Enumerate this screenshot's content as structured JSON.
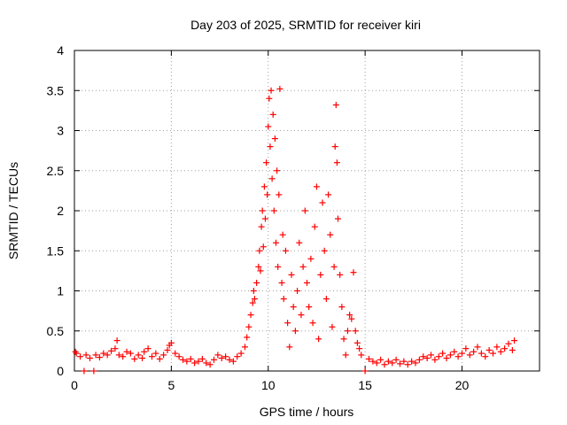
{
  "chart_data": {
    "type": "scatter",
    "title": "Day 203 of 2025, SRMTID for receiver kiri",
    "xlabel": "GPS time / hours",
    "ylabel": "SRMTID / TECUs",
    "xlim": [
      0,
      24
    ],
    "ylim": [
      0,
      4
    ],
    "x_ticks": [
      0,
      5,
      10,
      15,
      20
    ],
    "x_tick_labels": [
      "0",
      "5",
      "10",
      "15",
      "20"
    ],
    "y_ticks": [
      0,
      0.5,
      1,
      1.5,
      2,
      2.5,
      3,
      3.5,
      4
    ],
    "y_tick_labels": [
      "0",
      "0.5",
      "1",
      "1.5",
      "2",
      "2.5",
      "3",
      "3.5",
      "4"
    ],
    "grid": true,
    "marker": "+",
    "color": "#ff0000",
    "series": [
      {
        "name": "SRMTID",
        "points": [
          [
            0.05,
            0.24
          ],
          [
            0.1,
            0.22
          ],
          [
            0.3,
            0.18
          ],
          [
            0.5,
            0.0
          ],
          [
            0.6,
            0.2
          ],
          [
            0.8,
            0.16
          ],
          [
            1.0,
            0.0
          ],
          [
            1.1,
            0.2
          ],
          [
            1.3,
            0.17
          ],
          [
            1.5,
            0.22
          ],
          [
            1.7,
            0.2
          ],
          [
            1.9,
            0.25
          ],
          [
            2.1,
            0.28
          ],
          [
            2.2,
            0.38
          ],
          [
            2.3,
            0.2
          ],
          [
            2.5,
            0.18
          ],
          [
            2.7,
            0.24
          ],
          [
            2.9,
            0.22
          ],
          [
            3.1,
            0.15
          ],
          [
            3.3,
            0.2
          ],
          [
            3.5,
            0.16
          ],
          [
            3.6,
            0.24
          ],
          [
            3.8,
            0.28
          ],
          [
            4.0,
            0.18
          ],
          [
            4.2,
            0.22
          ],
          [
            4.4,
            0.15
          ],
          [
            4.6,
            0.2
          ],
          [
            4.8,
            0.26
          ],
          [
            4.9,
            0.32
          ],
          [
            5.0,
            0.35
          ],
          [
            5.2,
            0.22
          ],
          [
            5.4,
            0.18
          ],
          [
            5.6,
            0.14
          ],
          [
            5.8,
            0.12
          ],
          [
            6.0,
            0.15
          ],
          [
            6.2,
            0.1
          ],
          [
            6.4,
            0.12
          ],
          [
            6.6,
            0.15
          ],
          [
            6.8,
            0.1
          ],
          [
            7.0,
            0.08
          ],
          [
            7.2,
            0.14
          ],
          [
            7.4,
            0.2
          ],
          [
            7.6,
            0.16
          ],
          [
            7.8,
            0.18
          ],
          [
            8.0,
            0.14
          ],
          [
            8.2,
            0.12
          ],
          [
            8.4,
            0.18
          ],
          [
            8.6,
            0.22
          ],
          [
            8.8,
            0.3
          ],
          [
            8.9,
            0.42
          ],
          [
            9.0,
            0.55
          ],
          [
            9.1,
            0.7
          ],
          [
            9.2,
            0.85
          ],
          [
            9.25,
            1.0
          ],
          [
            9.3,
            0.9
          ],
          [
            9.4,
            1.1
          ],
          [
            9.5,
            1.3
          ],
          [
            9.55,
            1.5
          ],
          [
            9.6,
            1.25
          ],
          [
            9.65,
            1.8
          ],
          [
            9.7,
            2.0
          ],
          [
            9.75,
            1.55
          ],
          [
            9.8,
            2.3
          ],
          [
            9.85,
            1.9
          ],
          [
            9.9,
            2.6
          ],
          [
            9.95,
            2.2
          ],
          [
            10.0,
            3.05
          ],
          [
            10.05,
            3.4
          ],
          [
            10.1,
            2.8
          ],
          [
            10.15,
            3.5
          ],
          [
            10.2,
            2.4
          ],
          [
            10.25,
            3.2
          ],
          [
            10.3,
            2.0
          ],
          [
            10.35,
            2.9
          ],
          [
            10.4,
            1.6
          ],
          [
            10.45,
            2.5
          ],
          [
            10.5,
            1.3
          ],
          [
            10.55,
            2.2
          ],
          [
            10.6,
            3.52
          ],
          [
            10.7,
            1.1
          ],
          [
            10.75,
            1.7
          ],
          [
            10.8,
            0.9
          ],
          [
            10.9,
            1.5
          ],
          [
            11.0,
            0.6
          ],
          [
            11.1,
            0.3
          ],
          [
            11.2,
            1.2
          ],
          [
            11.3,
            0.8
          ],
          [
            11.4,
            0.5
          ],
          [
            11.5,
            1.0
          ],
          [
            11.6,
            1.6
          ],
          [
            11.7,
            0.7
          ],
          [
            11.8,
            1.3
          ],
          [
            11.9,
            2.0
          ],
          [
            12.0,
            1.1
          ],
          [
            12.1,
            0.8
          ],
          [
            12.2,
            1.4
          ],
          [
            12.3,
            0.6
          ],
          [
            12.4,
            1.8
          ],
          [
            12.5,
            2.3
          ],
          [
            12.6,
            0.4
          ],
          [
            12.7,
            1.2
          ],
          [
            12.8,
            2.1
          ],
          [
            12.9,
            1.5
          ],
          [
            13.0,
            0.9
          ],
          [
            13.1,
            2.2
          ],
          [
            13.2,
            1.7
          ],
          [
            13.3,
            0.55
          ],
          [
            13.4,
            1.3
          ],
          [
            13.45,
            2.8
          ],
          [
            13.5,
            3.32
          ],
          [
            13.55,
            2.6
          ],
          [
            13.6,
            1.9
          ],
          [
            13.7,
            1.2
          ],
          [
            13.8,
            0.8
          ],
          [
            13.9,
            0.4
          ],
          [
            14.0,
            0.2
          ],
          [
            14.1,
            0.5
          ],
          [
            14.2,
            0.7
          ],
          [
            14.3,
            0.65
          ],
          [
            14.4,
            1.23
          ],
          [
            14.5,
            0.5
          ],
          [
            14.6,
            0.35
          ],
          [
            14.7,
            0.28
          ],
          [
            14.8,
            0.2
          ],
          [
            15.0,
            0.0
          ],
          [
            15.2,
            0.15
          ],
          [
            15.4,
            0.12
          ],
          [
            15.6,
            0.1
          ],
          [
            15.8,
            0.14
          ],
          [
            16.0,
            0.08
          ],
          [
            16.2,
            0.12
          ],
          [
            16.4,
            0.1
          ],
          [
            16.6,
            0.14
          ],
          [
            16.8,
            0.09
          ],
          [
            17.0,
            0.12
          ],
          [
            17.2,
            0.08
          ],
          [
            17.4,
            0.12
          ],
          [
            17.6,
            0.1
          ],
          [
            17.8,
            0.14
          ],
          [
            18.0,
            0.18
          ],
          [
            18.2,
            0.16
          ],
          [
            18.4,
            0.2
          ],
          [
            18.6,
            0.14
          ],
          [
            18.8,
            0.18
          ],
          [
            19.0,
            0.22
          ],
          [
            19.2,
            0.16
          ],
          [
            19.4,
            0.2
          ],
          [
            19.6,
            0.24
          ],
          [
            19.8,
            0.18
          ],
          [
            20.0,
            0.22
          ],
          [
            20.2,
            0.28
          ],
          [
            20.4,
            0.2
          ],
          [
            20.6,
            0.24
          ],
          [
            20.8,
            0.3
          ],
          [
            21.0,
            0.22
          ],
          [
            21.2,
            0.18
          ],
          [
            21.4,
            0.26
          ],
          [
            21.6,
            0.22
          ],
          [
            21.8,
            0.3
          ],
          [
            22.0,
            0.24
          ],
          [
            22.2,
            0.28
          ],
          [
            22.4,
            0.34
          ],
          [
            22.6,
            0.26
          ],
          [
            22.7,
            0.38
          ]
        ]
      }
    ]
  }
}
